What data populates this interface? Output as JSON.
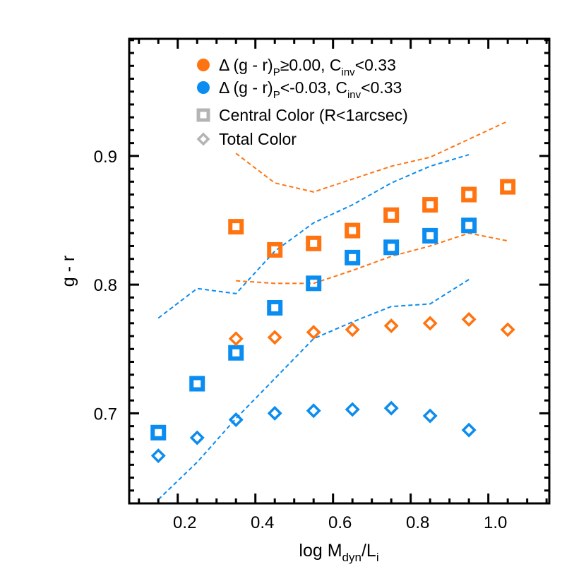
{
  "chart_data": {
    "type": "scatter",
    "title": "",
    "xlabel": "log M_dyn/L_i",
    "xlabel_parts": {
      "main": "log M",
      "sub1": "dyn",
      "mid": "/L",
      "sub2": "i"
    },
    "ylabel": "g - r",
    "xlim": [
      0.075,
      1.157
    ],
    "ylim": [
      0.63,
      0.991
    ],
    "xticks": [
      "0.2",
      "0.4",
      "0.6",
      "0.8",
      "1.0"
    ],
    "xtick_values": [
      0.2,
      0.4,
      0.6,
      0.8,
      1.0
    ],
    "yticks": [
      "0.7",
      "0.8",
      "0.9"
    ],
    "ytick_values": [
      0.7,
      0.8,
      0.9
    ],
    "grid": false,
    "legend_position": "top",
    "colors": {
      "orange": "#ff7410",
      "blue": "#0a8cf0",
      "legend_gray": "#b4b4b4"
    },
    "legend": [
      {
        "marker": "circle",
        "color": "#ff7410",
        "parts": [
          "Δ (g - r)",
          "P",
          "≥0.00, C",
          "inv",
          "<0.33"
        ]
      },
      {
        "marker": "circle",
        "color": "#0a8cf0",
        "parts": [
          "Δ (g - r)",
          "P",
          "<-0.03, C",
          "inv",
          "<0.33"
        ]
      },
      {
        "marker": "square",
        "color": "#b4b4b4",
        "parts": [
          "Central Color (R<1arcsec)"
        ]
      },
      {
        "marker": "diamond",
        "color": "#b4b4b4",
        "parts": [
          "Total Color"
        ]
      }
    ],
    "series": [
      {
        "group": "orange",
        "marker": "square",
        "color": "#ff7410",
        "x": [
          0.35,
          0.45,
          0.55,
          0.65,
          0.75,
          0.85,
          0.95,
          1.05
        ],
        "y": [
          0.845,
          0.827,
          0.832,
          0.842,
          0.854,
          0.862,
          0.87,
          0.876
        ]
      },
      {
        "group": "blue",
        "marker": "square",
        "color": "#0a8cf0",
        "x": [
          0.15,
          0.25,
          0.35,
          0.45,
          0.55,
          0.65,
          0.75,
          0.85,
          0.95
        ],
        "y": [
          0.685,
          0.723,
          0.747,
          0.782,
          0.801,
          0.821,
          0.829,
          0.838,
          0.846
        ]
      },
      {
        "group": "orange",
        "marker": "diamond",
        "color": "#ff7410",
        "x": [
          0.35,
          0.45,
          0.55,
          0.65,
          0.75,
          0.85,
          0.95,
          1.05
        ],
        "y": [
          0.758,
          0.759,
          0.763,
          0.765,
          0.768,
          0.77,
          0.773,
          0.765
        ]
      },
      {
        "group": "blue",
        "marker": "diamond",
        "color": "#0a8cf0",
        "x": [
          0.15,
          0.25,
          0.35,
          0.45,
          0.55,
          0.65,
          0.75,
          0.85,
          0.95
        ],
        "y": [
          0.667,
          0.681,
          0.695,
          0.7,
          0.702,
          0.703,
          0.704,
          0.698,
          0.687
        ]
      },
      {
        "group": "orange",
        "marker": "dashed-line",
        "color": "#ff7410",
        "x": [
          0.35,
          0.45,
          0.55,
          0.65,
          0.75,
          0.85,
          0.95,
          1.05
        ],
        "y": [
          0.902,
          0.879,
          0.872,
          0.882,
          0.892,
          0.899,
          0.913,
          0.927
        ]
      },
      {
        "group": "orange",
        "marker": "dashed-line",
        "color": "#ff7410",
        "x": [
          0.35,
          0.45,
          0.55,
          0.65,
          0.75,
          0.85,
          0.95,
          1.05
        ],
        "y": [
          0.803,
          0.801,
          0.801,
          0.811,
          0.822,
          0.83,
          0.84,
          0.834
        ]
      },
      {
        "group": "blue",
        "marker": "dashed-line",
        "color": "#0a8cf0",
        "x": [
          0.15,
          0.25,
          0.35,
          0.45,
          0.55,
          0.65,
          0.75,
          0.85,
          0.95
        ],
        "y": [
          0.774,
          0.797,
          0.793,
          0.826,
          0.848,
          0.862,
          0.879,
          0.892,
          0.901
        ]
      },
      {
        "group": "blue",
        "marker": "dashed-line",
        "color": "#0a8cf0",
        "x": [
          0.15,
          0.25,
          0.35,
          0.45,
          0.55,
          0.65,
          0.75,
          0.85,
          0.95
        ],
        "y": [
          0.633,
          0.662,
          0.696,
          0.727,
          0.758,
          0.771,
          0.783,
          0.785,
          0.804
        ]
      }
    ]
  }
}
